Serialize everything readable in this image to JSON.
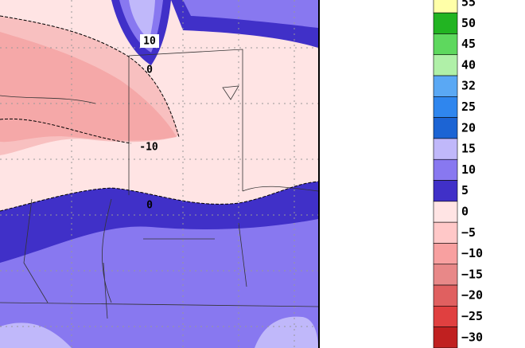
{
  "map": {
    "contour_labels": [
      "10",
      "0",
      "-10",
      "0"
    ]
  },
  "colorbar": {
    "entries": [
      {
        "label": "55",
        "color": "#ffffa8"
      },
      {
        "label": "50",
        "color": "#22b422"
      },
      {
        "label": "45",
        "color": "#5ed85e"
      },
      {
        "label": "40",
        "color": "#b0f0a8"
      },
      {
        "label": "32",
        "color": "#5aa8f4"
      },
      {
        "label": "25",
        "color": "#2f86ee"
      },
      {
        "label": "20",
        "color": "#1c64d4"
      },
      {
        "label": "15",
        "color": "#c0b8fa"
      },
      {
        "label": "10",
        "color": "#8878f0"
      },
      {
        "label": "5",
        "color": "#4030c8"
      },
      {
        "label": "0",
        "color": "#ffe4e4"
      },
      {
        "label": "−5",
        "color": "#ffc8c8"
      },
      {
        "label": "−10",
        "color": "#f8a0a0"
      },
      {
        "label": "−15",
        "color": "#e88888"
      },
      {
        "label": "−20",
        "color": "#e06060"
      },
      {
        "label": "−25",
        "color": "#e04040"
      },
      {
        "label": "−30",
        "color": "#c02020"
      }
    ]
  }
}
